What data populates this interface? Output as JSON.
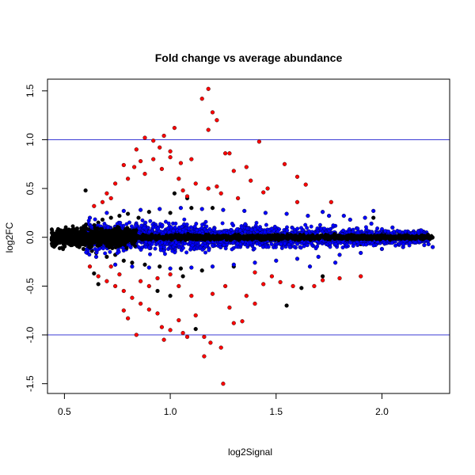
{
  "chart_data": {
    "type": "scatter",
    "title": "Fold change vs average abundance",
    "xlabel": "log2Signal",
    "ylabel": "log2FC",
    "xlim": [
      0.42,
      2.32
    ],
    "ylim": [
      -1.6,
      1.62
    ],
    "xticks": [
      0.5,
      1.0,
      1.5,
      2.0
    ],
    "xtick_labels": [
      "0.5",
      "1.0",
      "1.5",
      "2.0"
    ],
    "yticks": [
      -1.5,
      -1.0,
      -0.5,
      0.0,
      0.5,
      1.0,
      1.5
    ],
    "ytick_labels": [
      "-1.5",
      "-1.0",
      "-0.5",
      "0.0",
      "0.5",
      "1.0",
      "1.5"
    ],
    "grid": false,
    "hlines": [
      {
        "y": 1.0,
        "color": "#3b3bd6"
      },
      {
        "y": -1.0,
        "color": "#3b3bd6"
      }
    ],
    "series": [
      {
        "color": "#000000",
        "points": [
          [
            0.44,
            -0.02
          ],
          [
            0.45,
            0.01
          ],
          [
            0.46,
            -0.03
          ],
          [
            0.47,
            0.04
          ],
          [
            0.48,
            0.0
          ],
          [
            0.49,
            -0.05
          ],
          [
            0.5,
            0.05
          ],
          [
            0.51,
            -0.06
          ],
          [
            0.52,
            0.02
          ],
          [
            0.53,
            -0.08
          ],
          [
            0.54,
            0.07
          ],
          [
            0.55,
            -0.04
          ],
          [
            0.56,
            0.09
          ],
          [
            0.57,
            -0.1
          ],
          [
            0.58,
            0.05
          ],
          [
            0.59,
            -0.12
          ],
          [
            0.6,
            0.1
          ],
          [
            0.61,
            -0.09
          ],
          [
            0.62,
            0.12
          ],
          [
            0.63,
            -0.14
          ],
          [
            0.64,
            0.08
          ],
          [
            0.65,
            -0.16
          ],
          [
            0.66,
            0.15
          ],
          [
            0.67,
            -0.05
          ],
          [
            0.68,
            0.18
          ],
          [
            0.7,
            -0.2
          ],
          [
            0.72,
            0.2
          ],
          [
            0.74,
            -0.18
          ],
          [
            0.76,
            0.22
          ],
          [
            0.78,
            -0.24
          ],
          [
            0.8,
            0.24
          ],
          [
            0.82,
            -0.26
          ],
          [
            0.85,
            0.2
          ],
          [
            0.88,
            -0.28
          ],
          [
            0.9,
            0.26
          ],
          [
            0.95,
            -0.3
          ],
          [
            1.0,
            0.25
          ],
          [
            1.05,
            -0.32
          ],
          [
            1.1,
            0.3
          ],
          [
            1.15,
            -0.34
          ],
          [
            1.2,
            0.3
          ],
          [
            1.3,
            -0.3
          ],
          [
            0.6,
            0.48
          ],
          [
            0.64,
            -0.37
          ],
          [
            0.66,
            -0.48
          ],
          [
            0.94,
            -0.55
          ],
          [
            1.0,
            -0.6
          ],
          [
            1.02,
            0.45
          ],
          [
            1.06,
            -0.4
          ],
          [
            1.12,
            -0.94
          ],
          [
            1.08,
            0.4
          ],
          [
            1.55,
            -0.7
          ],
          [
            1.62,
            -0.52
          ],
          [
            1.72,
            -0.4
          ],
          [
            1.96,
            0.2
          ],
          [
            2.02,
            0.05
          ],
          [
            2.06,
            0.03
          ],
          [
            2.1,
            0.02
          ],
          [
            2.14,
            0.0
          ],
          [
            2.18,
            -0.01
          ],
          [
            2.2,
            0.0
          ],
          [
            2.22,
            -0.03
          ],
          [
            2.16,
            0.04
          ],
          [
            2.12,
            -0.04
          ],
          [
            2.08,
            0.05
          ],
          [
            2.04,
            -0.05
          ],
          [
            2.0,
            0.06
          ],
          [
            1.98,
            -0.06
          ],
          [
            1.94,
            0.04
          ],
          [
            1.9,
            -0.07
          ],
          [
            1.86,
            0.06
          ],
          [
            1.82,
            -0.05
          ]
        ]
      },
      {
        "color": "#0000ff",
        "points": [
          [
            0.62,
            0.2
          ],
          [
            0.65,
            -0.2
          ],
          [
            0.7,
            0.25
          ],
          [
            0.74,
            -0.28
          ],
          [
            0.78,
            0.27
          ],
          [
            0.82,
            -0.3
          ],
          [
            0.86,
            0.28
          ],
          [
            0.9,
            -0.31
          ],
          [
            0.95,
            0.29
          ],
          [
            1.0,
            -0.32
          ],
          [
            1.05,
            0.3
          ],
          [
            1.1,
            -0.31
          ],
          [
            1.15,
            0.29
          ],
          [
            1.2,
            -0.3
          ],
          [
            1.25,
            0.28
          ],
          [
            1.3,
            -0.28
          ],
          [
            1.35,
            0.27
          ],
          [
            1.4,
            -0.26
          ],
          [
            1.45,
            0.25
          ],
          [
            1.5,
            -0.24
          ],
          [
            1.55,
            0.24
          ],
          [
            1.6,
            -0.22
          ],
          [
            1.65,
            0.22
          ],
          [
            1.7,
            -0.2
          ],
          [
            1.75,
            0.22
          ],
          [
            1.8,
            -0.18
          ],
          [
            1.85,
            0.18
          ],
          [
            1.9,
            -0.16
          ],
          [
            1.95,
            0.14
          ],
          [
            2.0,
            -0.12
          ],
          [
            2.05,
            0.1
          ],
          [
            2.1,
            -0.1
          ],
          [
            2.15,
            0.06
          ],
          [
            2.2,
            -0.08
          ],
          [
            2.24,
            -0.1
          ],
          [
            2.22,
            -0.07
          ],
          [
            1.72,
            0.26
          ],
          [
            1.82,
            0.22
          ],
          [
            1.92,
            0.2
          ],
          [
            1.78,
            -0.26
          ],
          [
            1.66,
            -0.3
          ],
          [
            1.96,
            0.27
          ]
        ]
      },
      {
        "color": "#ff0000",
        "points": [
          [
            1.18,
            1.52
          ],
          [
            1.15,
            1.42
          ],
          [
            1.2,
            1.28
          ],
          [
            1.22,
            1.2
          ],
          [
            1.18,
            1.1
          ],
          [
            0.97,
            1.04
          ],
          [
            1.02,
            1.12
          ],
          [
            0.88,
            1.02
          ],
          [
            0.92,
            0.99
          ],
          [
            1.26,
            0.86
          ],
          [
            1.28,
            0.86
          ],
          [
            1.42,
            0.98
          ],
          [
            0.84,
            0.9
          ],
          [
            0.95,
            0.92
          ],
          [
            1.0,
            0.88
          ],
          [
            0.78,
            0.74
          ],
          [
            0.83,
            0.72
          ],
          [
            0.86,
            0.78
          ],
          [
            0.92,
            0.8
          ],
          [
            1.0,
            0.82
          ],
          [
            1.05,
            0.76
          ],
          [
            1.1,
            0.8
          ],
          [
            0.8,
            0.6
          ],
          [
            0.74,
            0.55
          ],
          [
            0.7,
            0.45
          ],
          [
            0.68,
            0.36
          ],
          [
            0.64,
            0.32
          ],
          [
            0.72,
            0.4
          ],
          [
            0.88,
            0.65
          ],
          [
            0.96,
            0.7
          ],
          [
            1.04,
            0.6
          ],
          [
            1.12,
            0.55
          ],
          [
            1.18,
            0.5
          ],
          [
            1.24,
            0.45
          ],
          [
            1.3,
            0.68
          ],
          [
            1.36,
            0.72
          ],
          [
            1.38,
            0.58
          ],
          [
            1.44,
            0.46
          ],
          [
            1.46,
            0.5
          ],
          [
            1.54,
            0.75
          ],
          [
            1.6,
            0.62
          ],
          [
            1.64,
            0.54
          ],
          [
            1.6,
            0.36
          ],
          [
            1.76,
            0.36
          ],
          [
            1.22,
            0.52
          ],
          [
            1.32,
            0.4
          ],
          [
            1.08,
            0.42
          ],
          [
            1.06,
            0.48
          ],
          [
            0.62,
            -0.3
          ],
          [
            0.66,
            -0.4
          ],
          [
            0.7,
            -0.45
          ],
          [
            0.74,
            -0.5
          ],
          [
            0.78,
            -0.55
          ],
          [
            0.82,
            -0.62
          ],
          [
            0.86,
            -0.68
          ],
          [
            0.9,
            -0.74
          ],
          [
            0.94,
            -0.78
          ],
          [
            0.78,
            -0.75
          ],
          [
            0.8,
            -0.83
          ],
          [
            0.84,
            -1.0
          ],
          [
            0.96,
            -0.92
          ],
          [
            0.97,
            -1.05
          ],
          [
            1.0,
            -0.95
          ],
          [
            1.04,
            -0.85
          ],
          [
            1.06,
            -0.98
          ],
          [
            1.08,
            -1.02
          ],
          [
            1.12,
            -0.8
          ],
          [
            1.16,
            -1.02
          ],
          [
            1.19,
            -1.08
          ],
          [
            1.24,
            -1.13
          ],
          [
            1.16,
            -1.22
          ],
          [
            1.25,
            -1.5
          ],
          [
            1.28,
            -0.72
          ],
          [
            1.3,
            -0.88
          ],
          [
            1.34,
            -0.86
          ],
          [
            1.36,
            -0.6
          ],
          [
            1.4,
            -0.68
          ],
          [
            1.44,
            -0.48
          ],
          [
            1.48,
            -0.4
          ],
          [
            1.52,
            -0.46
          ],
          [
            1.58,
            -0.5
          ],
          [
            1.68,
            -0.5
          ],
          [
            1.72,
            -0.44
          ],
          [
            1.8,
            -0.42
          ],
          [
            1.9,
            -0.4
          ],
          [
            0.9,
            -0.5
          ],
          [
            0.94,
            -0.42
          ],
          [
            1.0,
            -0.38
          ],
          [
            1.04,
            -0.5
          ],
          [
            1.1,
            -0.6
          ],
          [
            1.2,
            -0.58
          ],
          [
            1.26,
            -0.5
          ],
          [
            0.86,
            -0.45
          ],
          [
            0.76,
            -0.38
          ],
          [
            0.72,
            -0.3
          ],
          [
            1.4,
            -0.36
          ]
        ]
      }
    ]
  }
}
